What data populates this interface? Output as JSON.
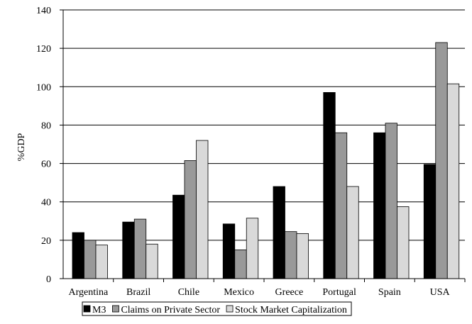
{
  "chart_data": {
    "type": "bar",
    "title": "",
    "xlabel": "",
    "ylabel": "%GDP",
    "ylim": [
      0,
      140
    ],
    "yticks": [
      "0",
      "20",
      "40",
      "60",
      "80",
      "100",
      "120",
      "140"
    ],
    "grid": true,
    "legend_position": "bottom",
    "categories": [
      "Argentina",
      "Brazil",
      "Chile",
      "Mexico",
      "Greece",
      "Portugal",
      "Spain",
      "USA"
    ],
    "series": [
      {
        "name": "M3",
        "color": "#000000",
        "values": [
          24,
          29.5,
          43.5,
          28.5,
          48,
          97,
          76,
          59.5
        ]
      },
      {
        "name": "Claims on Private Sector",
        "color": "#999999",
        "values": [
          20,
          31,
          61.5,
          15,
          24.5,
          76,
          81,
          123
        ]
      },
      {
        "name": "Stock Market Capitalization",
        "color": "#d9d9d9",
        "values": [
          17.5,
          18,
          72,
          31.5,
          23.5,
          48,
          37.5,
          101.5
        ]
      }
    ]
  }
}
